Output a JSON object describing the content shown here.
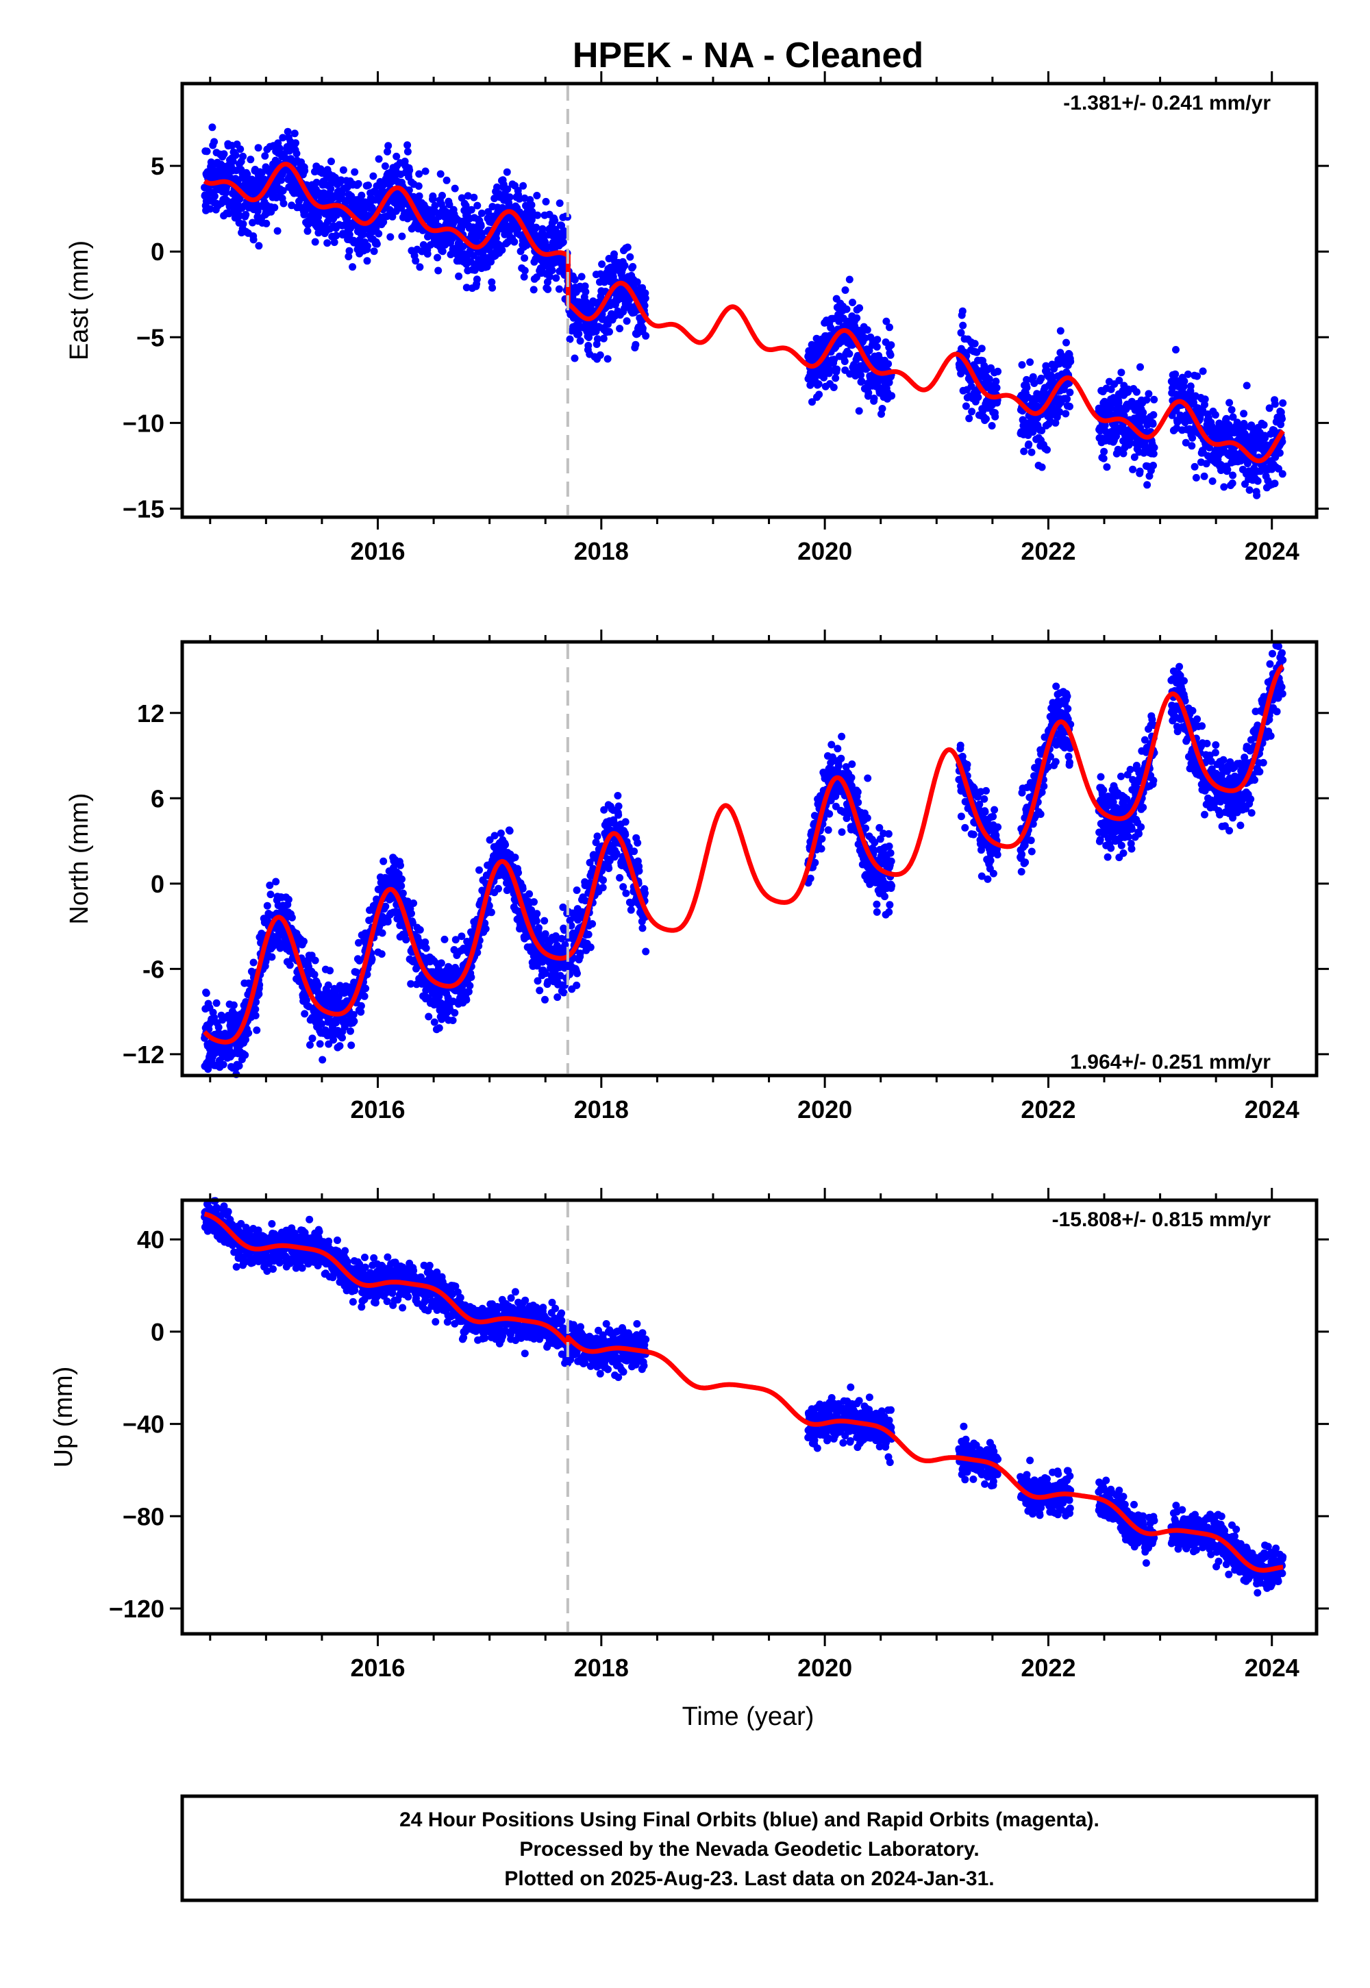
{
  "title": "HPEK  - NA - Cleaned",
  "colors": {
    "data_points": "#0000ff",
    "model_curve": "#ff0000",
    "equipment_change": "#c0c0c0",
    "frame": "#000000"
  },
  "chart_data": [
    {
      "type": "scatter",
      "component": "east",
      "ylabel": "East (mm)",
      "xlabel": "",
      "rate_text": "-1.381+/- 0.241 mm/yr",
      "xlim": [
        2014.25,
        2024.4
      ],
      "ylim": [
        -15.5,
        9.8
      ],
      "x_ticks": [
        2016,
        2018,
        2020,
        2022,
        2024
      ],
      "y_ticks": [
        5,
        0,
        -5,
        -10,
        -15
      ],
      "y_tick_labels": [
        "5",
        "0",
        "−10",
        "−15"
      ],
      "y_tick_labels_full": [
        "5",
        "0",
        "−5",
        "−10",
        "−15"
      ],
      "equipment_change_year": 2017.7,
      "data_segments": [
        [
          2014.45,
          2018.4
        ],
        [
          2019.85,
          2020.6
        ],
        [
          2021.2,
          2021.55
        ],
        [
          2021.75,
          2022.2
        ],
        [
          2022.45,
          2022.95
        ],
        [
          2023.1,
          2024.1
        ]
      ],
      "model": {
        "offset": 4.6,
        "ref_year": 2014.45,
        "rate": -1.381,
        "annual_sin": 0.9,
        "annual_cos": 0.2,
        "semi_sin": 0.5,
        "semi_cos": -0.35,
        "steps": [
          {
            "year": 2017.7,
            "size": -2.8
          }
        ]
      },
      "scatter_sigma": 1.1
    },
    {
      "type": "scatter",
      "component": "north",
      "ylabel": "North (mm)",
      "xlabel": "",
      "rate_text": "1.964+/- 0.251 mm/yr",
      "xlim": [
        2014.25,
        2024.4
      ],
      "ylim": [
        -13.5,
        17
      ],
      "x_ticks": [
        2016,
        2018,
        2020,
        2022,
        2024
      ],
      "y_ticks": [
        12,
        6,
        0,
        -6,
        -12
      ],
      "y_tick_labels_full": [
        "12",
        "6",
        "0",
        "-6",
        "−12"
      ],
      "equipment_change_year": 2017.7,
      "data_segments": [
        [
          2014.45,
          2018.4
        ],
        [
          2019.85,
          2020.6
        ],
        [
          2021.2,
          2021.55
        ],
        [
          2021.75,
          2022.2
        ],
        [
          2022.45,
          2022.95
        ],
        [
          2023.1,
          2024.1
        ]
      ],
      "model": {
        "offset": -8.3,
        "ref_year": 2014.45,
        "rate": 1.964,
        "annual_sin": 2.6,
        "annual_cos": 2.9,
        "semi_sin": 0.7,
        "semi_cos": 0.3,
        "steps": []
      },
      "scatter_sigma": 1.2
    },
    {
      "type": "scatter",
      "component": "up",
      "ylabel": "Up (mm)",
      "xlabel": "Time (year)",
      "rate_text": "-15.808+/- 0.815 mm/yr",
      "xlim": [
        2014.25,
        2024.4
      ],
      "ylim": [
        -131,
        57
      ],
      "x_ticks": [
        2016,
        2018,
        2020,
        2022,
        2024
      ],
      "y_ticks": [
        40,
        0,
        -40,
        -80,
        -120
      ],
      "y_tick_labels_full": [
        "40",
        "0",
        "−40",
        "−80",
        "−120"
      ],
      "equipment_change_year": 2017.7,
      "data_segments": [
        [
          2014.45,
          2018.4
        ],
        [
          2019.85,
          2020.6
        ],
        [
          2021.2,
          2021.55
        ],
        [
          2021.75,
          2022.2
        ],
        [
          2022.45,
          2022.95
        ],
        [
          2023.1,
          2024.1
        ]
      ],
      "model": {
        "offset": 47.5,
        "ref_year": 2014.45,
        "rate": -15.808,
        "annual_sin": 2.5,
        "annual_cos": -3.0,
        "semi_sin": 0.8,
        "semi_cos": 0.5,
        "steps": [
          {
            "year": 2017.7,
            "size": 3.0
          }
        ]
      },
      "scatter_sigma": 4.2
    }
  ],
  "x_tick_labels": [
    "2016",
    "2018",
    "2020",
    "2022",
    "2024"
  ],
  "footer": {
    "line1": "24 Hour Positions Using Final Orbits (blue) and Rapid Orbits (magenta).",
    "line2": "Processed by the Nevada Geodetic Laboratory.",
    "line3": "Plotted on 2025-Aug-23. Last data on 2024-Jan-31."
  }
}
